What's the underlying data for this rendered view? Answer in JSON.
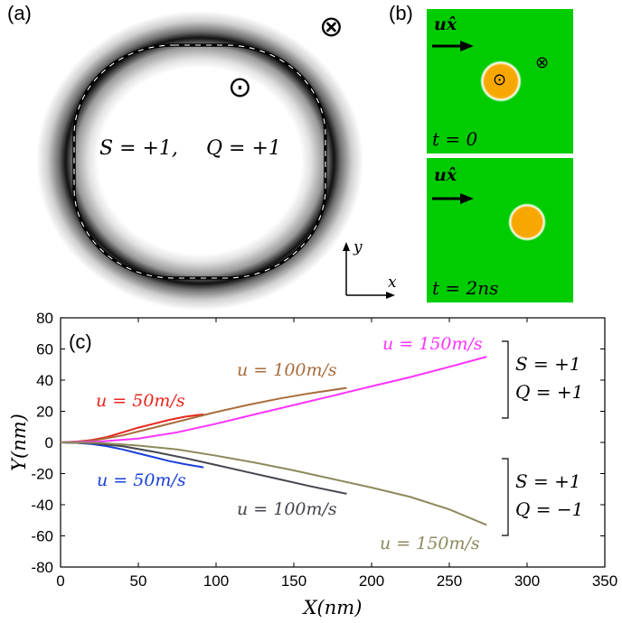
{
  "panel_a": {
    "label": "(a)",
    "formula_s": "S = +1,",
    "formula_q": "Q = +1",
    "axis_x": "x",
    "axis_y": "y",
    "symbol_out": "⊙",
    "symbol_in": "⊗"
  },
  "panel_b": {
    "label": "(b)",
    "drive_top": "ux̂",
    "drive_bottom": "ux̂",
    "time_top": "t = 0",
    "time_bottom": "t = 2ns",
    "colors": {
      "background": "#00cc00",
      "skyrmion": "#f7a800"
    }
  },
  "chart_data": {
    "type": "line",
    "label": "(c)",
    "xlabel": "X(nm)",
    "ylabel": "Y(nm)",
    "xlim": [
      0,
      350
    ],
    "ylim": [
      -80,
      80
    ],
    "xticks": [
      0,
      50,
      100,
      150,
      200,
      250,
      300,
      350
    ],
    "yticks": [
      80,
      60,
      40,
      20,
      0,
      -20,
      -40,
      -60,
      -80
    ],
    "group_labels": [
      {
        "s": "S = +1",
        "q": "Q = +1"
      },
      {
        "s": "S = +1",
        "q": "Q = −1"
      }
    ],
    "series": [
      {
        "name": "u = 50m/s",
        "group": "Q=+1",
        "color": "#e8261d",
        "x": [
          0,
          10,
          20,
          30,
          40,
          50,
          60,
          70,
          80,
          92
        ],
        "y": [
          0,
          0.5,
          1.5,
          3.5,
          6.5,
          9.5,
          12,
          14.5,
          16.5,
          18
        ]
      },
      {
        "name": "u = 100m/s",
        "group": "Q=+1",
        "color": "#a86c3c",
        "x": [
          0,
          20,
          40,
          60,
          80,
          100,
          120,
          140,
          160,
          184
        ],
        "y": [
          0,
          1,
          4.5,
          9.5,
          14.5,
          19.5,
          24,
          28,
          31.5,
          35
        ]
      },
      {
        "name": "u = 150m/s",
        "group": "Q=+1",
        "color": "#ff33ff",
        "x": [
          0,
          25,
          50,
          75,
          100,
          125,
          150,
          175,
          200,
          225,
          250,
          274
        ],
        "y": [
          0,
          0.5,
          2.5,
          6.5,
          12,
          18,
          24,
          30,
          36,
          42,
          48.5,
          55
        ]
      },
      {
        "name": "u = 50m/s",
        "group": "Q=-1",
        "color": "#1a40d9",
        "x": [
          0,
          10,
          20,
          30,
          40,
          50,
          60,
          70,
          80,
          92
        ],
        "y": [
          0,
          -0.3,
          -1,
          -2.5,
          -4.5,
          -7,
          -9.5,
          -12,
          -14,
          -16
        ]
      },
      {
        "name": "u = 100m/s",
        "group": "Q=-1",
        "color": "#45454d",
        "x": [
          0,
          20,
          40,
          60,
          80,
          100,
          120,
          140,
          160,
          184
        ],
        "y": [
          0,
          -0.5,
          -2.5,
          -6,
          -10,
          -14.5,
          -19,
          -23.5,
          -28,
          -33
        ]
      },
      {
        "name": "u = 150m/s",
        "group": "Q=-1",
        "color": "#8c8a5c",
        "x": [
          0,
          25,
          50,
          75,
          100,
          125,
          150,
          175,
          200,
          225,
          250,
          274
        ],
        "y": [
          0,
          -0.3,
          -2,
          -4.5,
          -8.5,
          -13,
          -18,
          -23.5,
          -29,
          -35,
          -43,
          -53
        ]
      }
    ]
  }
}
